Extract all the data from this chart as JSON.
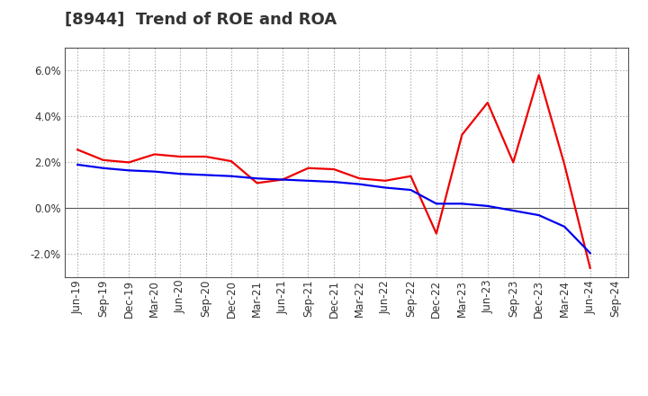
{
  "title": "[8944]  Trend of ROE and ROA",
  "x_labels": [
    "Jun-19",
    "Sep-19",
    "Dec-19",
    "Mar-20",
    "Jun-20",
    "Sep-20",
    "Dec-20",
    "Mar-21",
    "Jun-21",
    "Sep-21",
    "Dec-21",
    "Mar-22",
    "Jun-22",
    "Sep-22",
    "Dec-22",
    "Mar-23",
    "Jun-23",
    "Sep-23",
    "Dec-23",
    "Mar-24",
    "Jun-24",
    "Sep-24"
  ],
  "ROE": [
    2.55,
    2.1,
    2.0,
    2.35,
    2.25,
    2.25,
    2.05,
    1.1,
    1.25,
    1.75,
    1.7,
    1.3,
    1.2,
    1.4,
    -1.1,
    3.2,
    4.6,
    2.0,
    5.8,
    1.9,
    -2.6,
    null
  ],
  "ROA": [
    1.9,
    1.75,
    1.65,
    1.6,
    1.5,
    1.45,
    1.4,
    1.3,
    1.25,
    1.2,
    1.15,
    1.05,
    0.9,
    0.8,
    0.2,
    0.2,
    0.1,
    -0.1,
    -0.3,
    -0.8,
    -1.95,
    null
  ],
  "ROE_color": "#EE0000",
  "ROA_color": "#0000EE",
  "bg_color": "#FFFFFF",
  "plot_bg_color": "#FFFFFF",
  "grid_color": "#999999",
  "ylim": [
    -3.0,
    7.0
  ],
  "yticks": [
    -2.0,
    0.0,
    2.0,
    4.0,
    6.0
  ],
  "title_fontsize": 13,
  "axis_fontsize": 8.5,
  "legend_fontsize": 10,
  "line_width": 1.6
}
